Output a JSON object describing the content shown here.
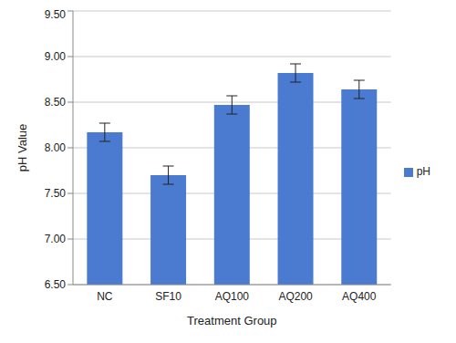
{
  "chart_data": {
    "type": "bar",
    "x_label": "Treatment Group",
    "y_label": "pH Value",
    "categories": [
      "NC",
      "SF10",
      "AQ100",
      "AQ200",
      "AQ400"
    ],
    "series": [
      {
        "name": "pH",
        "color": "#4a7bd0",
        "values": [
          8.17,
          7.7,
          8.47,
          8.82,
          8.64
        ],
        "errors": [
          0.1,
          0.1,
          0.1,
          0.1,
          0.1
        ]
      }
    ],
    "ylim": [
      6.5,
      9.5
    ],
    "yticks": [
      {
        "value": 6.5,
        "label": "6.50"
      },
      {
        "value": 7,
        "label": "7.00"
      },
      {
        "value": 7.5,
        "label": "7.50"
      },
      {
        "value": 8,
        "label": "8.00"
      },
      {
        "value": 8.5,
        "label": "8.50"
      },
      {
        "value": 9,
        "label": "9.00"
      },
      {
        "value": 9.5,
        "label": "9.50"
      }
    ],
    "grid": true,
    "legend": "right"
  }
}
